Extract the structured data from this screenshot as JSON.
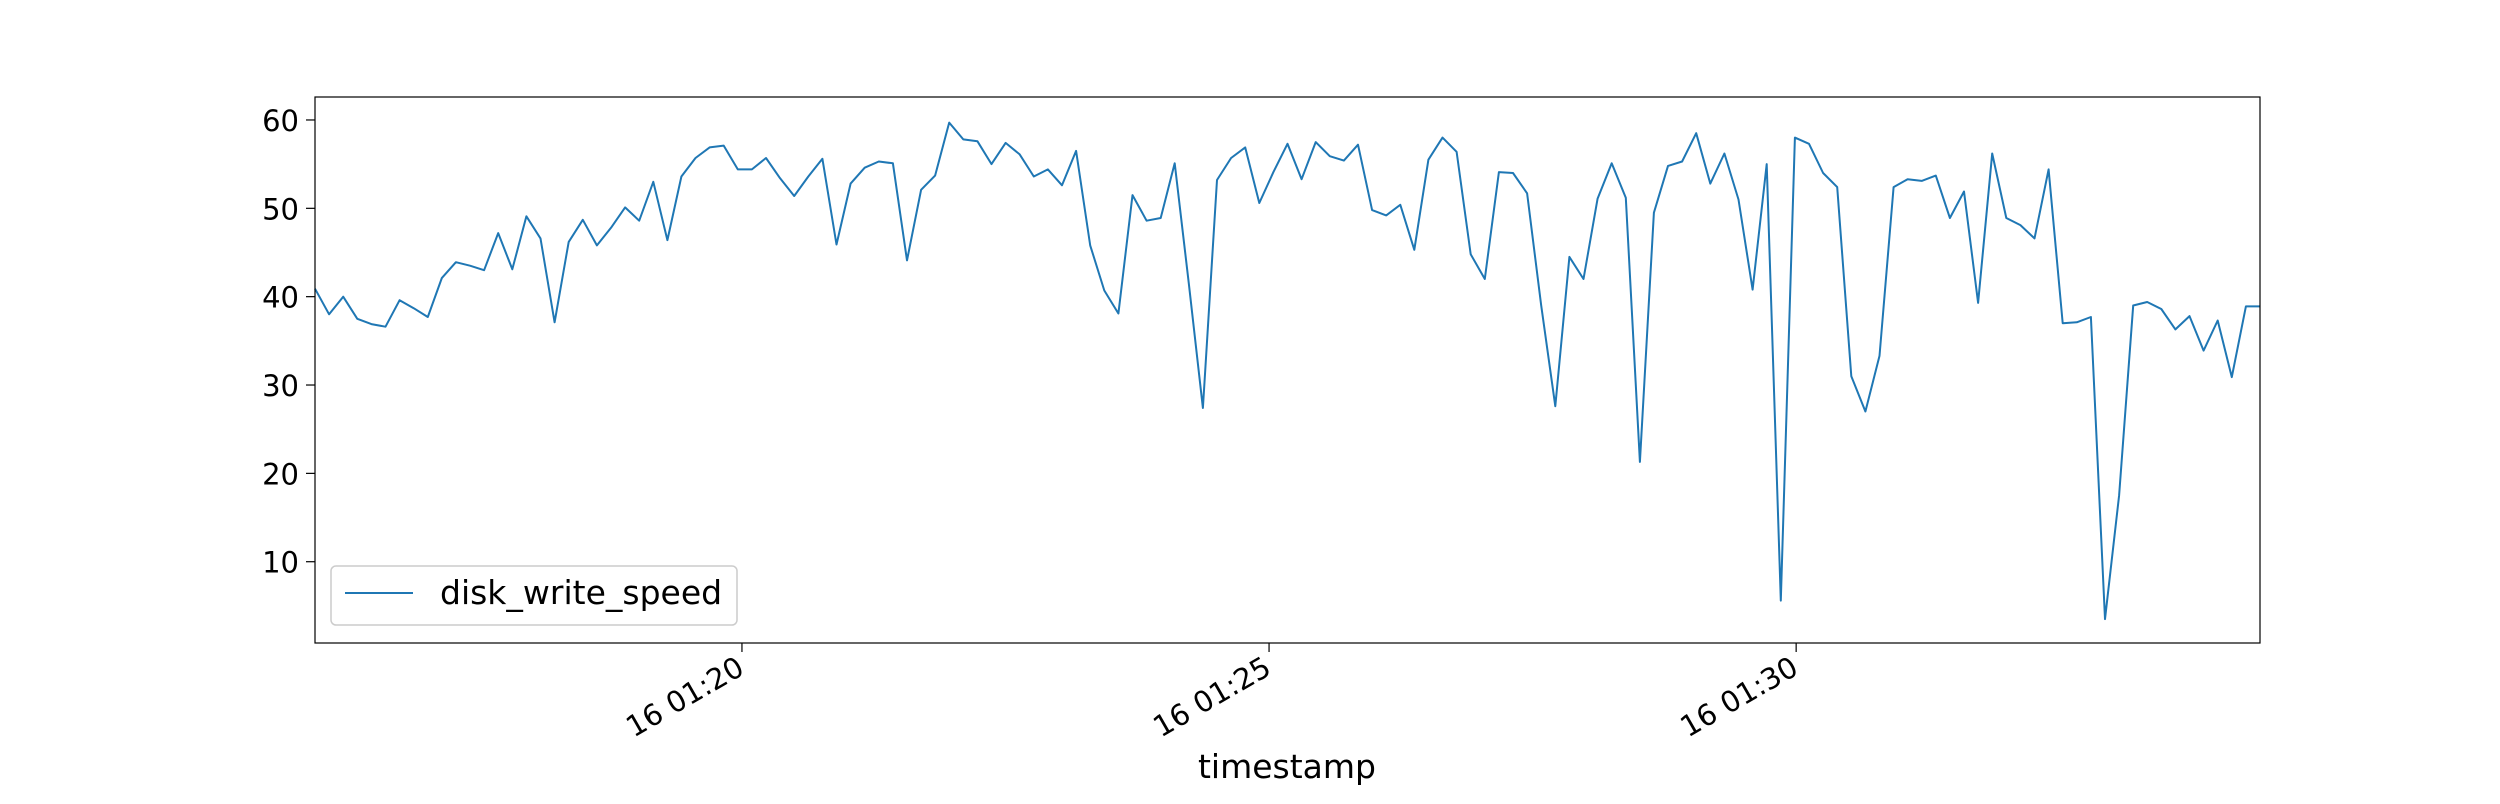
{
  "chart_data": {
    "type": "line",
    "xlabel": "timestamp",
    "ylabel": "",
    "x_tick_labels": [
      "16 01:20",
      "16 01:25",
      "16 01:30"
    ],
    "x_tick_minutes": [
      20,
      25,
      30
    ],
    "x_start_minute": 15.95,
    "x_end_minute": 34.4,
    "y_ticks": [
      10,
      20,
      30,
      40,
      50,
      60
    ],
    "ylim": [
      0.8,
      62.6
    ],
    "legend": {
      "position": "lower-left",
      "entries": [
        "disk_write_speed"
      ]
    },
    "colors": {
      "series": "#1f77b4",
      "axes": "#000000"
    },
    "grid": false,
    "series": [
      {
        "name": "disk_write_speed",
        "values": [
          40.9,
          38.0,
          40.0,
          37.5,
          36.9,
          36.6,
          39.6,
          38.7,
          37.7,
          42.1,
          43.9,
          43.5,
          43.0,
          47.2,
          43.1,
          49.1,
          46.6,
          37.1,
          46.2,
          48.7,
          45.8,
          47.8,
          50.1,
          48.6,
          53.0,
          46.4,
          53.6,
          55.7,
          56.9,
          57.1,
          54.4,
          54.4,
          55.7,
          53.4,
          51.4,
          53.6,
          55.6,
          45.9,
          52.8,
          54.6,
          55.3,
          55.1,
          44.1,
          52.1,
          53.7,
          59.7,
          57.8,
          57.6,
          55.0,
          57.4,
          56.1,
          53.6,
          54.4,
          52.6,
          56.5,
          45.8,
          40.7,
          38.1,
          51.5,
          48.6,
          48.9,
          55.1,
          41.5,
          27.4,
          53.2,
          55.7,
          56.9,
          50.6,
          54.1,
          57.3,
          53.3,
          57.5,
          55.9,
          55.4,
          57.2,
          49.8,
          49.2,
          50.4,
          45.3,
          55.5,
          58.0,
          56.4,
          44.8,
          42.0,
          54.1,
          54.0,
          51.7,
          39.0,
          27.6,
          44.5,
          42.0,
          51.1,
          55.1,
          51.2,
          21.3,
          49.5,
          54.8,
          55.3,
          58.5,
          52.8,
          56.2,
          51.0,
          40.8,
          55.0,
          5.6,
          58.0,
          57.3,
          54.0,
          52.4,
          31.0,
          27.0,
          33.3,
          52.4,
          53.3,
          53.1,
          53.7,
          48.9,
          51.9,
          39.3,
          56.2,
          48.9,
          48.1,
          46.6,
          54.4,
          37.0,
          37.1,
          37.7,
          3.5,
          17.5,
          39.0,
          39.4,
          38.6,
          36.3,
          37.8,
          33.9,
          37.3,
          30.9,
          38.9,
          38.9
        ]
      }
    ]
  }
}
